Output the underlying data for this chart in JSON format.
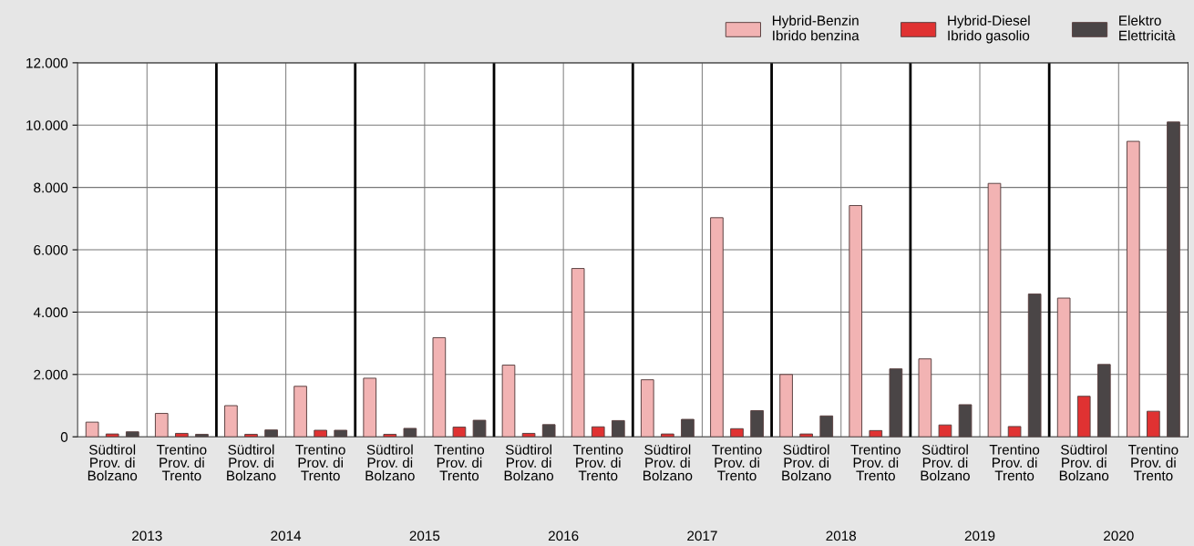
{
  "chart_data": {
    "type": "bar",
    "categories": [
      "Südtirol\nProv. di\nBolzano",
      "Trentino\nProv. di\nTrento",
      "Südtirol\nProv. di\nBolzano",
      "Trentino\nProv. di\nTrento",
      "Südtirol\nProv. di\nBolzano",
      "Trentino\nProv. di\nTrento",
      "Südtirol\nProv. di\nBolzano",
      "Trentino\nProv. di\nTrento",
      "Südtirol\nProv. di\nBolzano",
      "Trentino\nProv. di\nTrento",
      "Südtirol\nProv. di\nBolzano",
      "Trentino\nProv. di\nTrento",
      "Südtirol\nProv. di\nBolzano",
      "Trentino\nProv. di\nTrento",
      "Südtirol\nProv. di\nBolzano",
      "Trentino\nProv. di\nTrento"
    ],
    "series": [
      {
        "name": "Hybrid-Benzin\nIbrido benzina",
        "color": "#f2b3b3",
        "values": [
          470,
          750,
          1000,
          1620,
          1880,
          3180,
          2300,
          5400,
          1830,
          7030,
          2000,
          7420,
          2500,
          8130,
          4450,
          9480
        ]
      },
      {
        "name": "Hybrid-Diesel\nIbrido gasolio",
        "color": "#e03232",
        "values": [
          90,
          110,
          80,
          210,
          80,
          310,
          110,
          320,
          90,
          260,
          90,
          200,
          380,
          330,
          1300,
          820
        ]
      },
      {
        "name": "Elektro\nElettricità",
        "color": "#4a4546",
        "values": [
          160,
          80,
          220,
          210,
          270,
          530,
          390,
          520,
          560,
          840,
          670,
          2180,
          1030,
          4580,
          2320,
          10100
        ]
      }
    ],
    "ylim": [
      0,
      12000
    ],
    "yticks": [
      0,
      {
        "value": 2000,
        "label": "2.000"
      },
      {
        "value": 4000,
        "label": "4.000"
      },
      {
        "value": 6000,
        "label": "6.000"
      },
      {
        "value": 8000,
        "label": "8.000"
      },
      {
        "value": 10000,
        "label": "10.000"
      },
      {
        "value": 12000,
        "label": "12.000"
      }
    ],
    "annotations": [
      "2013",
      "2014",
      "2015",
      "2016",
      "2017",
      "2018",
      "2019",
      "2020"
    ],
    "grid": true,
    "legend": "top right"
  }
}
